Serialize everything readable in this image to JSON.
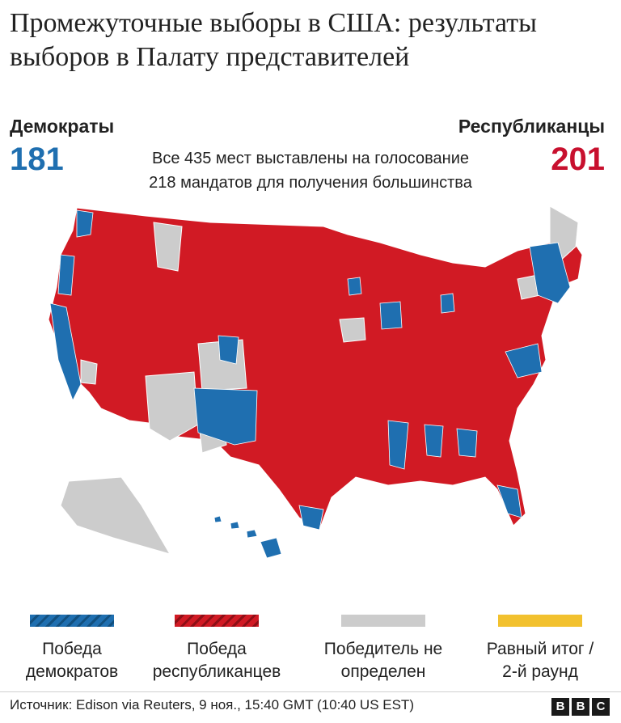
{
  "title": "Промежуточные выборы в США: результаты выборов в Палату представителей",
  "democrats": {
    "label": "Демократы",
    "seats": "181",
    "color": "#1f6fb0"
  },
  "republicans": {
    "label": "Республиканцы",
    "seats": "201",
    "color": "#c8102e"
  },
  "subtitle_line1": "Все 435 мест выставлены на голосование",
  "subtitle_line2": "218 мандатов для получения большинства",
  "legend": [
    {
      "line1": "Победа",
      "line2": "демократов",
      "color": "#1f6fb0"
    },
    {
      "line1": "Победа",
      "line2": "республиканцев",
      "color": "#d11a24"
    },
    {
      "line1": "Победитель не",
      "line2": "определен",
      "color": "#cccccc"
    },
    {
      "line1": "Равный итог /",
      "line2": "2-й раунд",
      "color": "#f2c12e"
    }
  ],
  "source": "Источник: Edison via Reuters, 9 ноя., 15:40 GMT (10:40 US EST)",
  "logo": [
    "B",
    "B",
    "C"
  ]
}
